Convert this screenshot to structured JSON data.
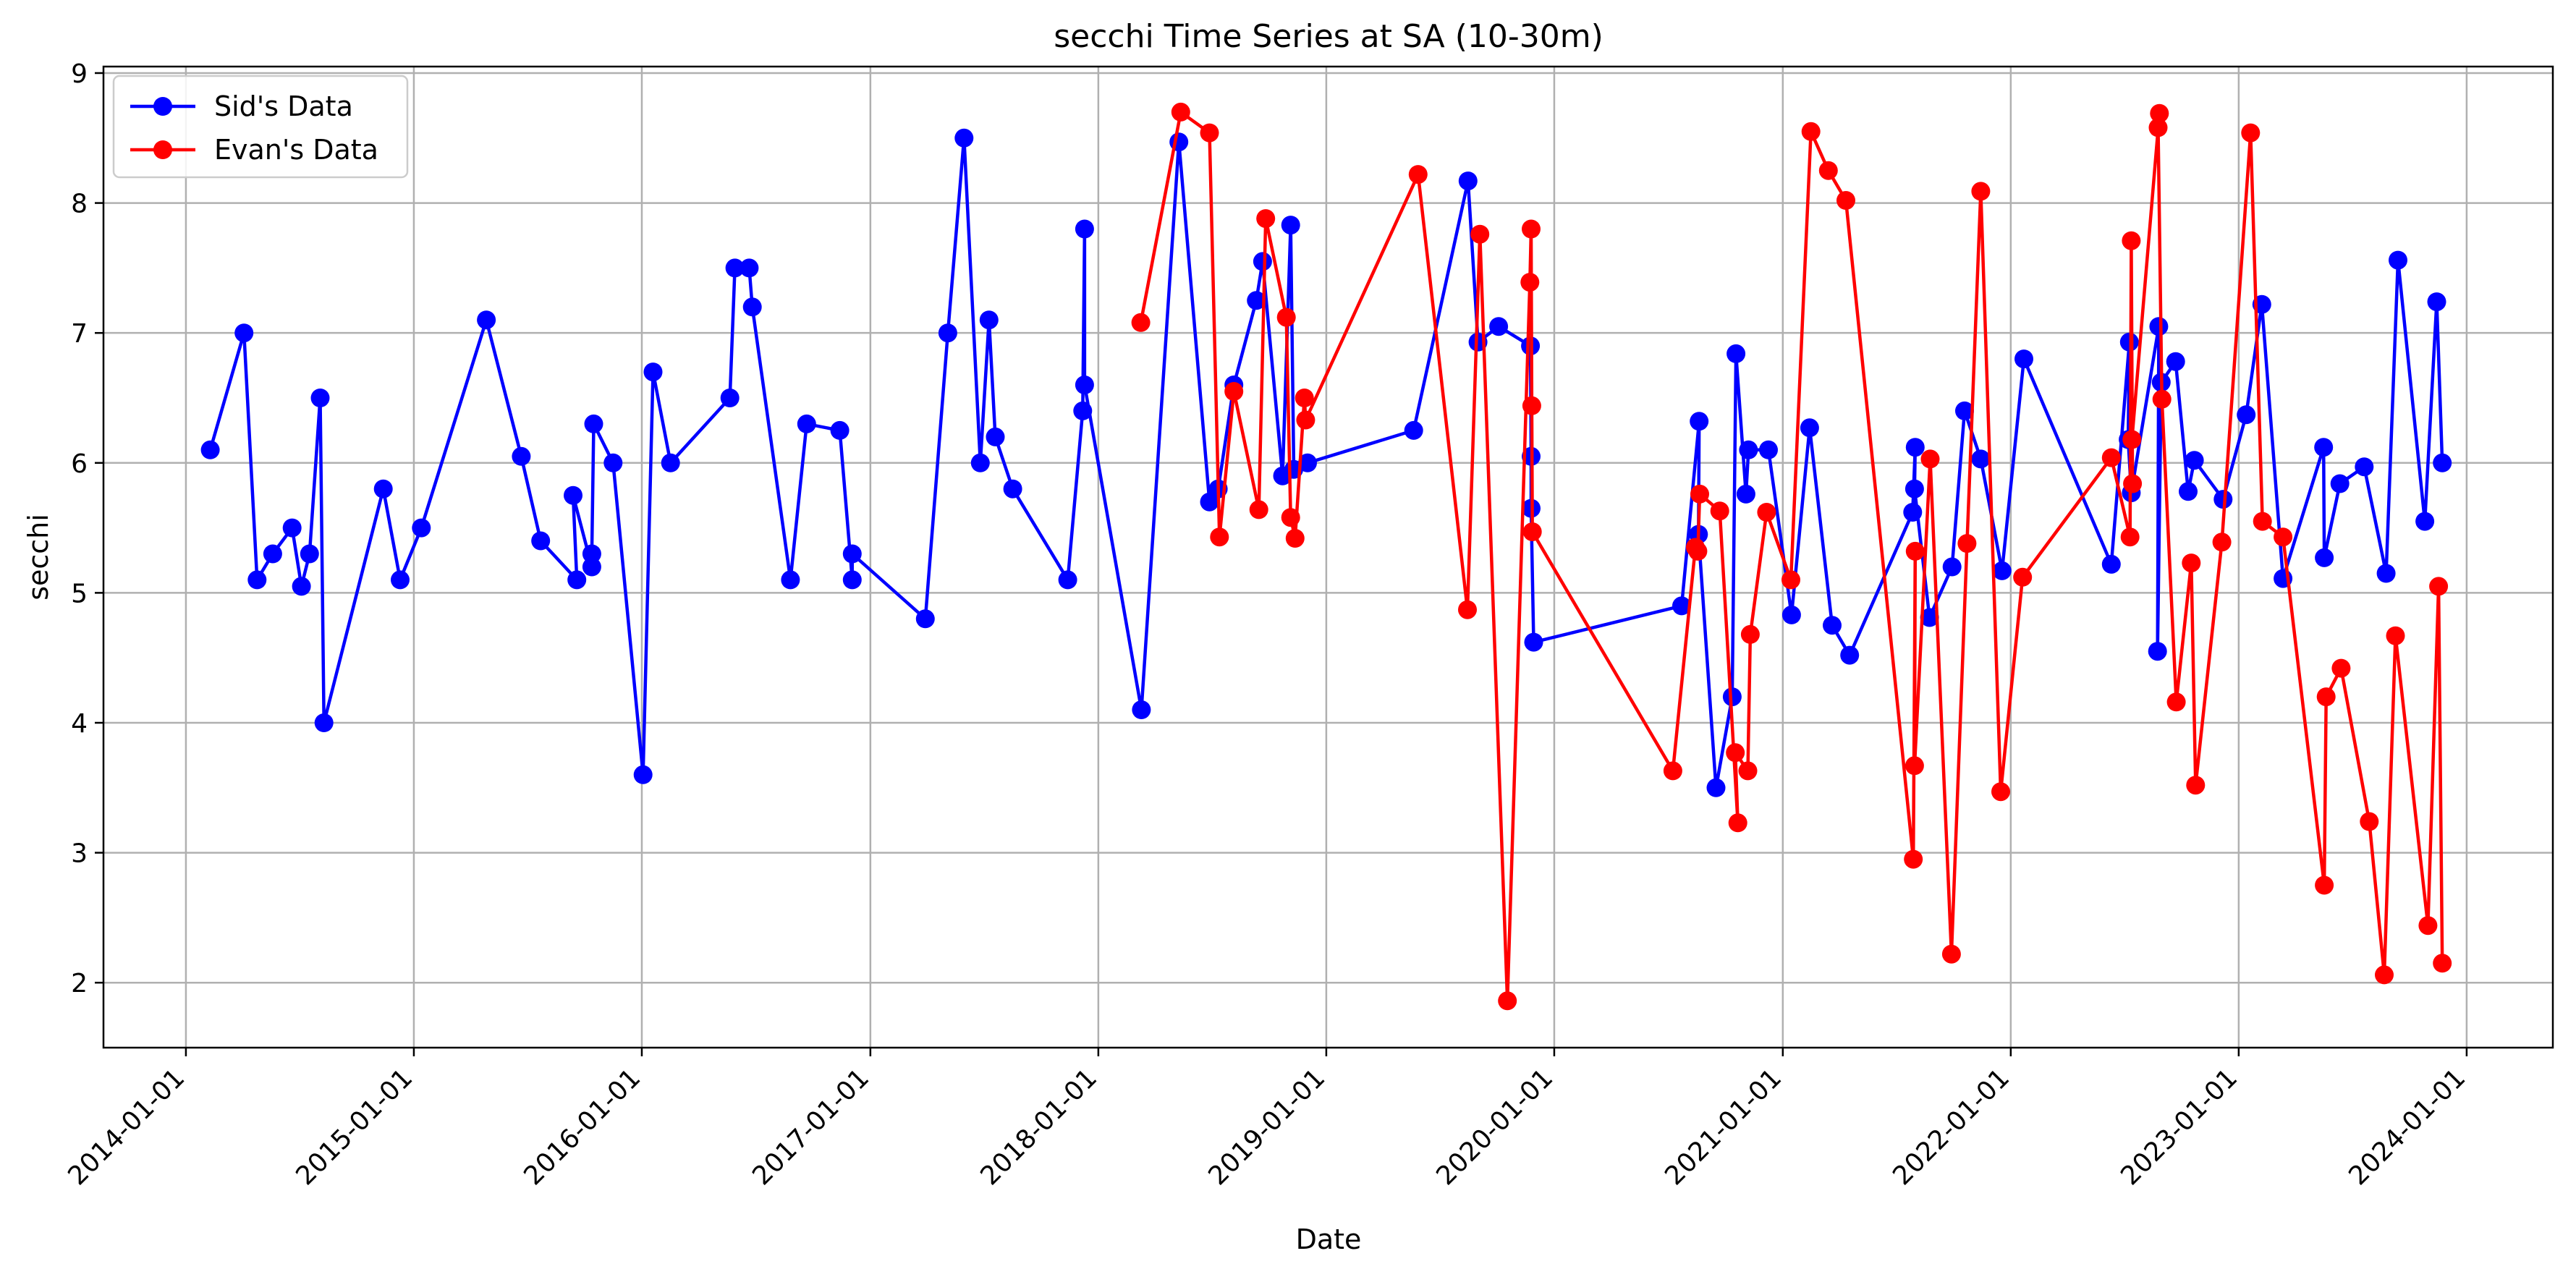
{
  "chart_data": {
    "type": "line",
    "title": "secchi Time Series at SA (10-30m)",
    "xlabel": "Date",
    "ylabel": "secchi",
    "xlim": [
      "2013-08-22",
      "2024-05-18"
    ],
    "ylim": [
      1.5,
      9.05
    ],
    "x_ticks": [
      "2014-01-01",
      "2015-01-01",
      "2016-01-01",
      "2017-01-01",
      "2018-01-01",
      "2019-01-01",
      "2020-01-01",
      "2021-01-01",
      "2022-01-01",
      "2023-01-01",
      "2024-01-01"
    ],
    "y_ticks": [
      2,
      3,
      4,
      5,
      6,
      7,
      8,
      9
    ],
    "grid": true,
    "legend_position": "top-left",
    "series": [
      {
        "name": "Sid's Data",
        "color": "#0000ff",
        "points": [
          [
            "2014-02-09",
            6.1
          ],
          [
            "2014-04-04",
            7.0
          ],
          [
            "2014-04-25",
            5.1
          ],
          [
            "2014-05-20",
            5.3
          ],
          [
            "2014-06-20",
            5.5
          ],
          [
            "2014-07-05",
            5.05
          ],
          [
            "2014-07-18",
            5.3
          ],
          [
            "2014-08-04",
            6.5
          ],
          [
            "2014-08-10",
            4.0
          ],
          [
            "2014-11-13",
            5.8
          ],
          [
            "2014-12-10",
            5.1
          ],
          [
            "2015-01-13",
            5.5
          ],
          [
            "2015-04-27",
            7.1
          ],
          [
            "2015-06-22",
            6.05
          ],
          [
            "2015-07-23",
            5.4
          ],
          [
            "2015-09-19",
            5.1
          ],
          [
            "2015-09-13",
            5.75
          ],
          [
            "2015-10-13",
            5.2
          ],
          [
            "2015-10-13",
            5.3
          ],
          [
            "2015-10-16",
            6.3
          ],
          [
            "2015-11-16",
            6.0
          ],
          [
            "2016-01-03",
            3.6
          ],
          [
            "2016-01-19",
            6.7
          ],
          [
            "2016-02-16",
            6.0
          ],
          [
            "2016-05-21",
            6.5
          ],
          [
            "2016-05-29",
            7.5
          ],
          [
            "2016-06-21",
            7.5
          ],
          [
            "2016-06-26",
            7.2
          ],
          [
            "2016-08-26",
            5.1
          ],
          [
            "2016-09-21",
            6.3
          ],
          [
            "2016-11-13",
            6.25
          ],
          [
            "2016-12-03",
            5.1
          ],
          [
            "2016-12-03",
            5.3
          ],
          [
            "2017-03-30",
            4.8
          ],
          [
            "2017-05-05",
            7.0
          ],
          [
            "2017-05-31",
            8.5
          ],
          [
            "2017-06-26",
            6.0
          ],
          [
            "2017-07-10",
            7.1
          ],
          [
            "2017-07-20",
            6.2
          ],
          [
            "2017-08-17",
            5.8
          ],
          [
            "2017-11-13",
            5.1
          ],
          [
            "2017-12-07",
            6.4
          ],
          [
            "2017-12-10",
            7.8
          ],
          [
            "2017-12-10",
            6.6
          ],
          [
            "2018-03-11",
            4.1
          ],
          [
            "2018-05-10",
            8.47
          ],
          [
            "2018-06-28",
            5.7
          ],
          [
            "2018-07-12",
            5.8
          ],
          [
            "2018-08-06",
            6.6
          ],
          [
            "2018-09-11",
            7.25
          ],
          [
            "2018-09-21",
            7.55
          ],
          [
            "2018-10-23",
            5.9
          ],
          [
            "2018-11-05",
            7.83
          ],
          [
            "2018-11-10",
            5.95
          ],
          [
            "2018-12-02",
            6.0
          ],
          [
            "2019-05-21",
            6.25
          ],
          [
            "2019-08-16",
            8.17
          ],
          [
            "2019-09-01",
            6.93
          ],
          [
            "2019-10-04",
            7.05
          ],
          [
            "2019-11-24",
            6.9
          ],
          [
            "2019-11-25",
            6.05
          ],
          [
            "2019-11-25",
            5.65
          ],
          [
            "2019-11-29",
            4.62
          ],
          [
            "2020-07-23",
            4.9
          ],
          [
            "2020-08-20",
            6.32
          ],
          [
            "2020-08-19",
            5.45
          ],
          [
            "2020-09-16",
            3.5
          ],
          [
            "2020-10-12",
            4.2
          ],
          [
            "2020-10-18",
            6.84
          ],
          [
            "2020-11-03",
            5.76
          ],
          [
            "2020-11-07",
            6.1
          ],
          [
            "2020-12-09",
            6.1
          ],
          [
            "2021-01-15",
            4.83
          ],
          [
            "2021-02-13",
            6.27
          ],
          [
            "2021-03-21",
            4.75
          ],
          [
            "2021-04-18",
            4.52
          ],
          [
            "2021-07-28",
            5.62
          ],
          [
            "2021-08-01",
            6.12
          ],
          [
            "2021-07-31",
            5.8
          ],
          [
            "2021-08-24",
            4.81
          ],
          [
            "2021-09-29",
            5.2
          ],
          [
            "2021-10-19",
            6.4
          ],
          [
            "2021-11-14",
            6.03
          ],
          [
            "2021-12-18",
            5.17
          ],
          [
            "2022-01-22",
            6.8
          ],
          [
            "2022-06-11",
            5.22
          ],
          [
            "2022-07-10",
            6.93
          ],
          [
            "2022-07-08",
            6.18
          ],
          [
            "2022-07-13",
            5.77
          ],
          [
            "2022-08-26",
            7.05
          ],
          [
            "2022-08-24",
            4.55
          ],
          [
            "2022-08-30",
            6.62
          ],
          [
            "2022-09-22",
            6.78
          ],
          [
            "2022-10-12",
            5.78
          ],
          [
            "2022-10-22",
            6.02
          ],
          [
            "2022-12-07",
            5.72
          ],
          [
            "2023-01-13",
            6.37
          ],
          [
            "2023-02-07",
            7.22
          ],
          [
            "2023-03-13",
            5.11
          ],
          [
            "2023-05-17",
            6.12
          ],
          [
            "2023-05-18",
            5.27
          ],
          [
            "2023-06-12",
            5.84
          ],
          [
            "2023-07-21",
            5.97
          ],
          [
            "2023-08-25",
            5.15
          ],
          [
            "2023-09-13",
            7.56
          ],
          [
            "2023-10-26",
            5.55
          ],
          [
            "2023-11-14",
            7.24
          ],
          [
            "2023-11-23",
            6.0
          ]
        ]
      },
      {
        "name": "Evan's Data",
        "color": "#ff0000",
        "points": [
          [
            "2018-03-10",
            7.08
          ],
          [
            "2018-05-13",
            8.7
          ],
          [
            "2018-06-28",
            8.54
          ],
          [
            "2018-07-14",
            5.43
          ],
          [
            "2018-08-06",
            6.55
          ],
          [
            "2018-09-15",
            5.64
          ],
          [
            "2018-09-26",
            7.88
          ],
          [
            "2018-10-29",
            7.12
          ],
          [
            "2018-11-05",
            5.58
          ],
          [
            "2018-11-12",
            5.42
          ],
          [
            "2018-11-27",
            6.5
          ],
          [
            "2018-11-29",
            6.33
          ],
          [
            "2019-05-28",
            8.22
          ],
          [
            "2019-08-15",
            4.87
          ],
          [
            "2019-09-04",
            7.76
          ],
          [
            "2019-10-18",
            1.86
          ],
          [
            "2019-11-23",
            7.39
          ],
          [
            "2019-11-25",
            7.8
          ],
          [
            "2019-11-26",
            6.44
          ],
          [
            "2019-11-27",
            5.47
          ],
          [
            "2020-07-09",
            3.63
          ],
          [
            "2020-08-14",
            5.35
          ],
          [
            "2020-08-18",
            5.32
          ],
          [
            "2020-08-21",
            5.76
          ],
          [
            "2020-09-22",
            5.63
          ],
          [
            "2020-10-21",
            3.23
          ],
          [
            "2020-10-17",
            3.77
          ],
          [
            "2020-11-06",
            3.63
          ],
          [
            "2020-11-10",
            4.68
          ],
          [
            "2020-12-06",
            5.62
          ],
          [
            "2021-01-14",
            5.1
          ],
          [
            "2021-02-15",
            8.55
          ],
          [
            "2021-03-15",
            8.25
          ],
          [
            "2021-04-12",
            8.02
          ],
          [
            "2021-07-29",
            2.95
          ],
          [
            "2021-08-01",
            5.32
          ],
          [
            "2021-07-31",
            3.67
          ],
          [
            "2021-08-25",
            6.03
          ],
          [
            "2021-09-28",
            2.22
          ],
          [
            "2021-10-23",
            5.38
          ],
          [
            "2021-11-14",
            8.09
          ],
          [
            "2021-12-16",
            3.47
          ],
          [
            "2022-01-20",
            5.12
          ],
          [
            "2022-06-11",
            6.04
          ],
          [
            "2022-07-11",
            5.43
          ],
          [
            "2022-07-13",
            7.71
          ],
          [
            "2022-07-15",
            5.84
          ],
          [
            "2022-07-14",
            6.18
          ],
          [
            "2022-08-27",
            8.69
          ],
          [
            "2022-08-25",
            8.58
          ],
          [
            "2022-08-31",
            6.49
          ],
          [
            "2022-09-23",
            4.16
          ],
          [
            "2022-10-17",
            5.23
          ],
          [
            "2022-10-24",
            3.52
          ],
          [
            "2022-12-05",
            5.39
          ],
          [
            "2023-01-20",
            8.54
          ],
          [
            "2023-02-08",
            5.55
          ],
          [
            "2023-03-13",
            5.43
          ],
          [
            "2023-05-18",
            2.75
          ],
          [
            "2023-05-21",
            4.2
          ],
          [
            "2023-06-14",
            4.42
          ],
          [
            "2023-07-29",
            3.24
          ],
          [
            "2023-08-22",
            2.06
          ],
          [
            "2023-09-09",
            4.67
          ],
          [
            "2023-10-31",
            2.44
          ],
          [
            "2023-11-17",
            5.05
          ],
          [
            "2023-11-23",
            2.15
          ]
        ]
      }
    ]
  }
}
